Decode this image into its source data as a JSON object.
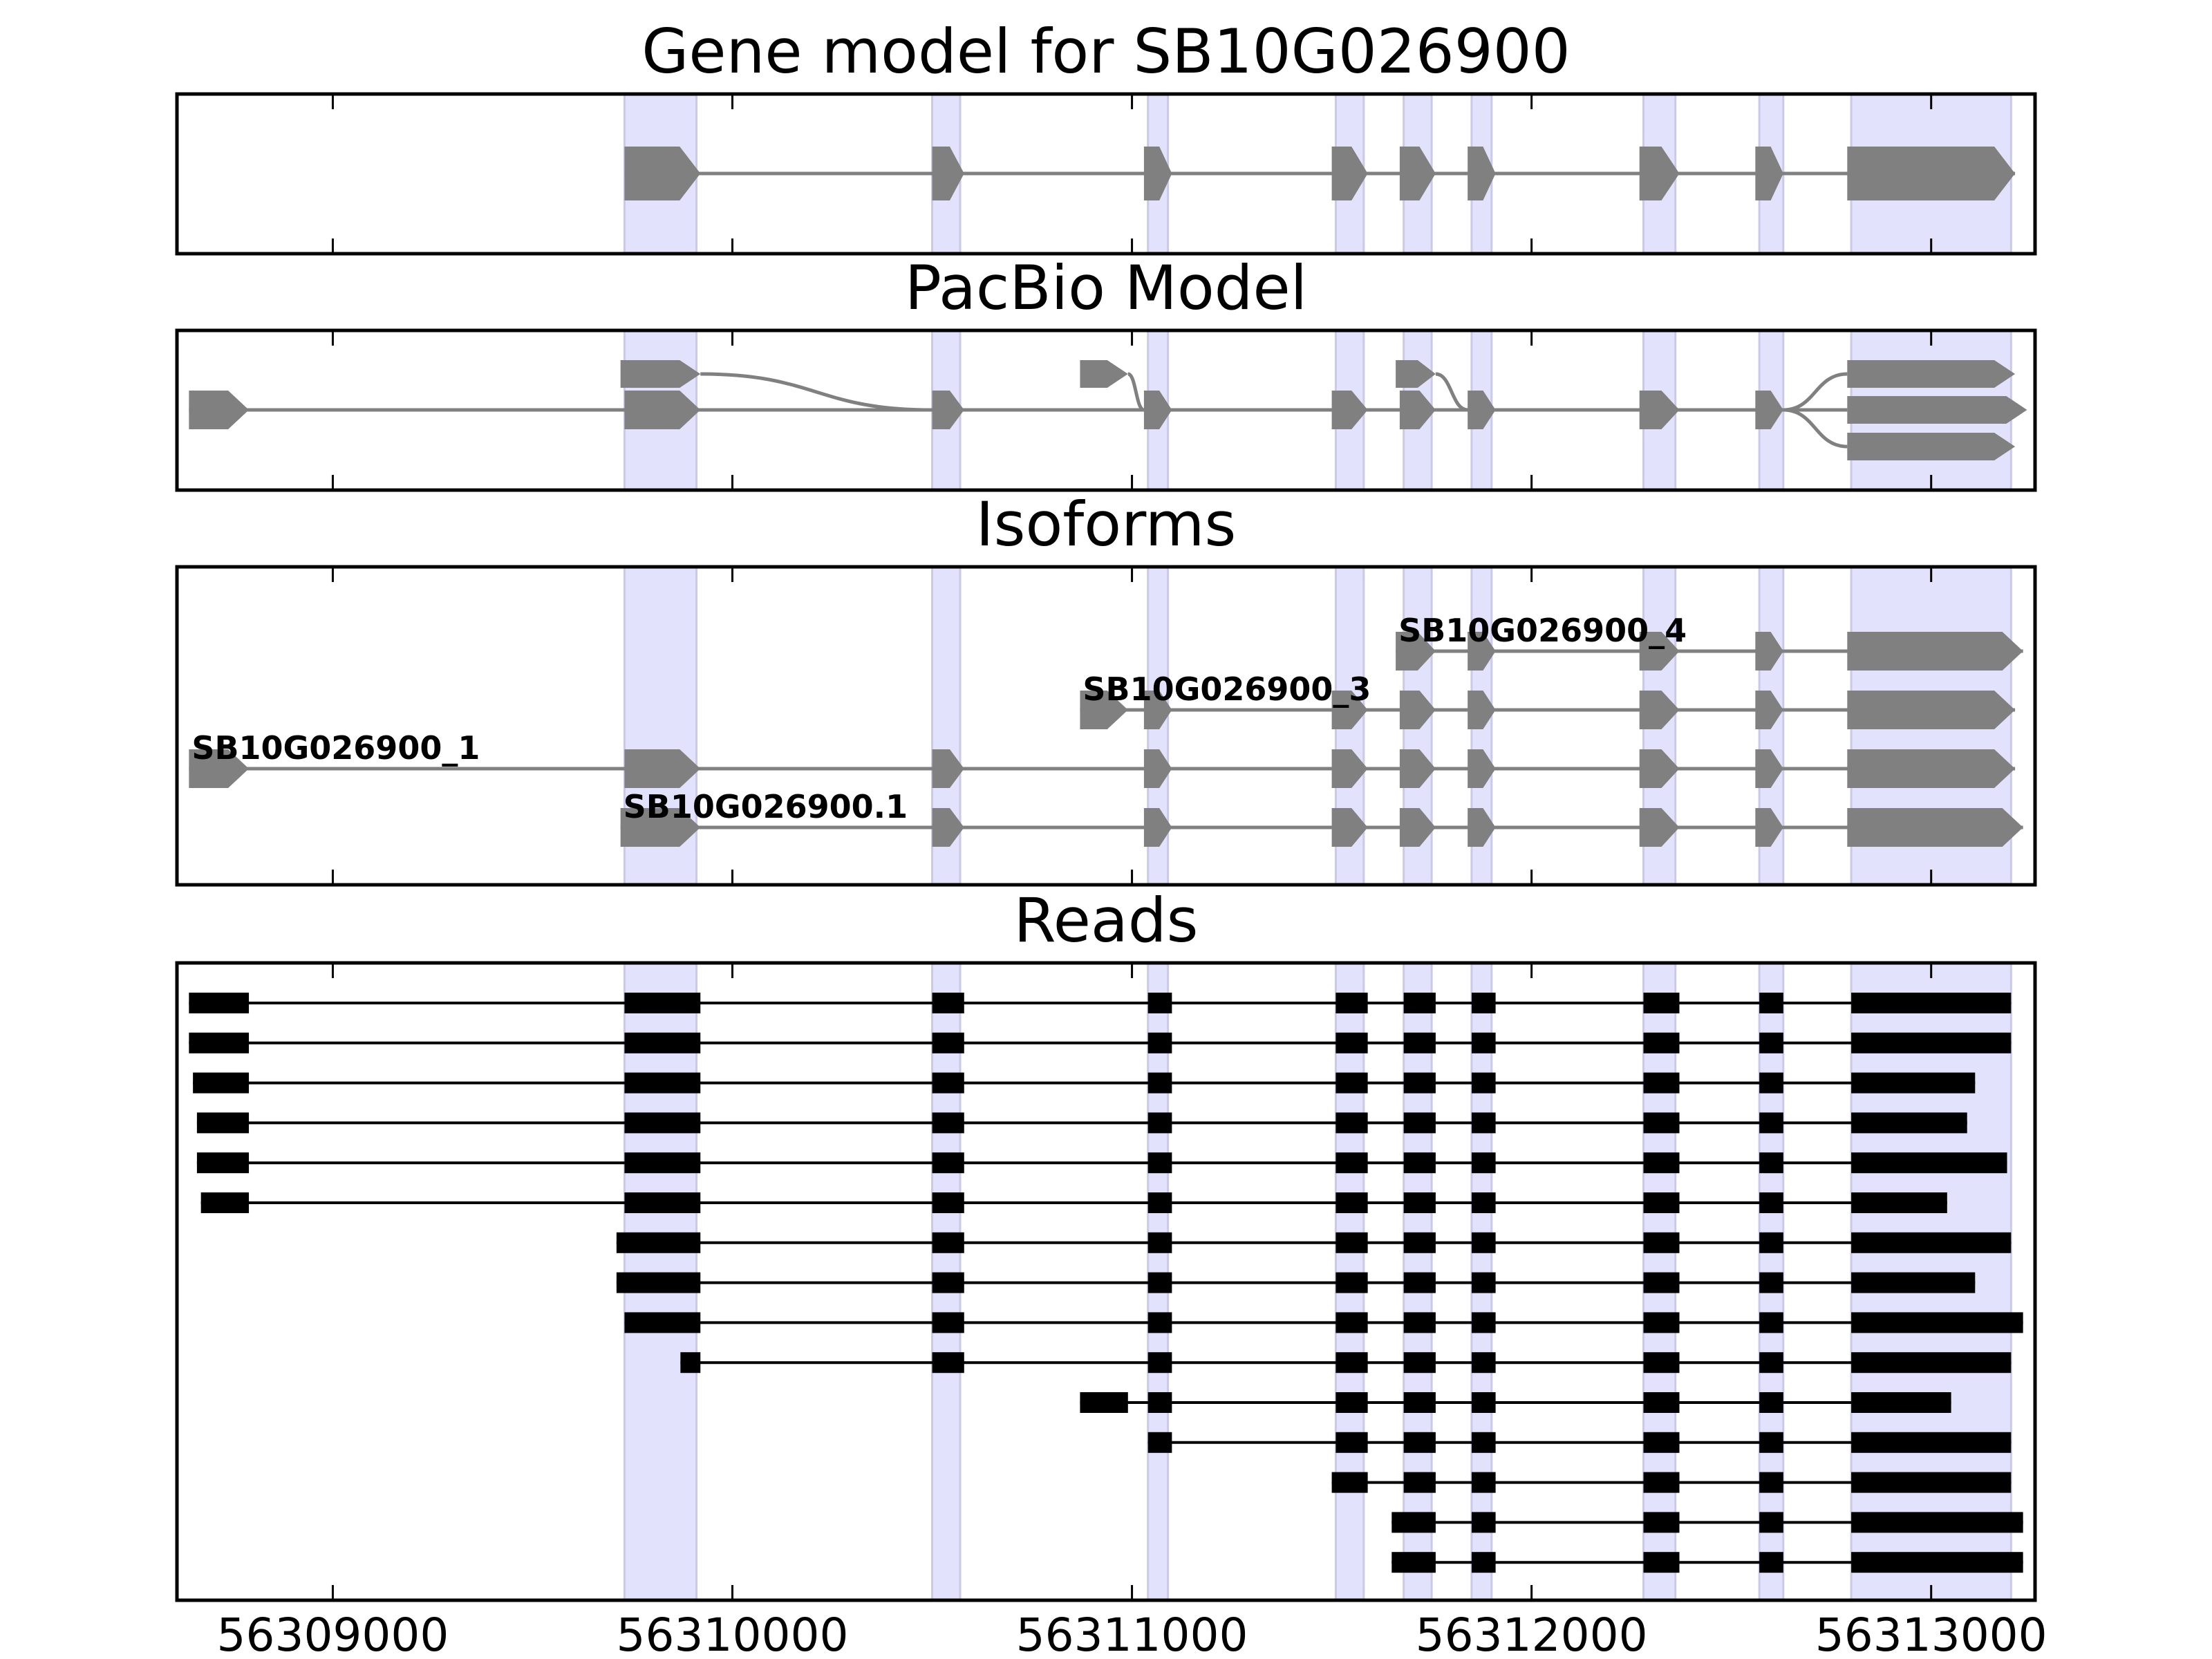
{
  "chart_data": {
    "type": "gene-structure",
    "x_axis": {
      "range": [
        56308610,
        56313260
      ],
      "ticks": [
        56309000,
        56310000,
        56311000,
        56312000,
        56313000
      ],
      "tick_labels": [
        "56309000",
        "56310000",
        "56311000",
        "56312000",
        "56313000"
      ]
    },
    "colors": {
      "exon_shade": "#e2e2fc",
      "exon_shade_edge": "#cacae8",
      "model": "#808080",
      "read": "#000000",
      "frame": "#000000"
    },
    "exon_regions": [
      [
        56309730,
        56309910
      ],
      [
        56310500,
        56310570
      ],
      [
        56311040,
        56311090
      ],
      [
        56311510,
        56311580
      ],
      [
        56311680,
        56311750
      ],
      [
        56311850,
        56311900
      ],
      [
        56312280,
        56312360
      ],
      [
        56312570,
        56312630
      ],
      [
        56312800,
        56313200
      ]
    ],
    "panels": [
      {
        "id": "gene",
        "title": "Gene model for SB10G026900",
        "lanes": 1,
        "tracks": [
          {
            "lane": 0,
            "exons": [
              [
                56309730,
                56309920
              ],
              [
                56310500,
                56310580
              ],
              [
                56311030,
                56311100
              ],
              [
                56311500,
                56311590
              ],
              [
                56311670,
                56311760
              ],
              [
                56311840,
                56311910
              ],
              [
                56312270,
                56312370
              ],
              [
                56312560,
                56312630
              ],
              [
                56312790,
                56313210
              ]
            ]
          }
        ]
      },
      {
        "id": "pacbio",
        "title": "PacBio Model",
        "lanes": 3,
        "tracks": [
          {
            "lane": 1,
            "exons": [
              [
                56308640,
                56308790
              ],
              [
                56309730,
                56309920
              ],
              [
                56310500,
                56310580
              ],
              [
                56311030,
                56311100
              ],
              [
                56311500,
                56311590
              ],
              [
                56311670,
                56311760
              ],
              [
                56311840,
                56311910
              ],
              [
                56312270,
                56312370
              ],
              [
                56312560,
                56312630
              ]
            ]
          }
        ],
        "nodes": [
          {
            "lane": 0,
            "start": 56309720,
            "end": 56309920
          },
          {
            "lane": 0,
            "start": 56310870,
            "end": 56310990
          },
          {
            "lane": 0,
            "start": 56311660,
            "end": 56311760
          },
          {
            "lane": 0,
            "start": 56312790,
            "end": 56313210
          },
          {
            "lane": 1,
            "start": 56312790,
            "end": 56313240
          },
          {
            "lane": 2,
            "start": 56312790,
            "end": 56313210
          }
        ],
        "connectors": [
          {
            "from": 56309920,
            "from_lane": 0,
            "to": 56310500,
            "to_lane": 1
          },
          {
            "from": 56310990,
            "from_lane": 0,
            "to": 56311030,
            "to_lane": 1
          },
          {
            "from": 56311760,
            "from_lane": 0,
            "to": 56311840,
            "to_lane": 1
          },
          {
            "from": 56312630,
            "from_lane": 1,
            "to": 56312790,
            "to_lane": 0
          },
          {
            "from": 56312630,
            "from_lane": 1,
            "to": 56312790,
            "to_lane": 1
          },
          {
            "from": 56312630,
            "from_lane": 1,
            "to": 56312790,
            "to_lane": 2
          }
        ]
      },
      {
        "id": "isoforms",
        "title": "Isoforms",
        "lanes": 4,
        "tracks": [
          {
            "lane": 0,
            "label": "SB10G026900_4",
            "exons": [
              [
                56311660,
                56311760
              ],
              [
                56311840,
                56311910
              ],
              [
                56312270,
                56312370
              ],
              [
                56312560,
                56312630
              ],
              [
                56312790,
                56313230
              ]
            ]
          },
          {
            "lane": 1,
            "label": "SB10G026900_3",
            "exons": [
              [
                56310870,
                56310990
              ],
              [
                56311030,
                56311100
              ],
              [
                56311500,
                56311590
              ],
              [
                56311670,
                56311760
              ],
              [
                56311840,
                56311910
              ],
              [
                56312270,
                56312370
              ],
              [
                56312560,
                56312630
              ],
              [
                56312790,
                56313210
              ]
            ]
          },
          {
            "lane": 2,
            "label": "SB10G026900_1",
            "exons": [
              [
                56308640,
                56308790
              ],
              [
                56309730,
                56309920
              ],
              [
                56310500,
                56310580
              ],
              [
                56311030,
                56311100
              ],
              [
                56311500,
                56311590
              ],
              [
                56311670,
                56311760
              ],
              [
                56311840,
                56311910
              ],
              [
                56312270,
                56312370
              ],
              [
                56312560,
                56312630
              ],
              [
                56312790,
                56313210
              ]
            ]
          },
          {
            "lane": 3,
            "label": "SB10G026900.1",
            "exons": [
              [
                56309720,
                56309920
              ],
              [
                56310500,
                56310580
              ],
              [
                56311030,
                56311100
              ],
              [
                56311500,
                56311590
              ],
              [
                56311670,
                56311760
              ],
              [
                56311840,
                56311910
              ],
              [
                56312270,
                56312370
              ],
              [
                56312560,
                56312630
              ],
              [
                56312790,
                56313230
              ]
            ]
          }
        ]
      },
      {
        "id": "reads",
        "title": "Reads",
        "lanes": 15,
        "tracks": [
          {
            "lane": 0,
            "exons": [
              [
                56308640,
                56308790
              ],
              [
                56309730,
                56309920
              ],
              [
                56310500,
                56310580
              ],
              [
                56311040,
                56311100
              ],
              [
                56311510,
                56311590
              ],
              [
                56311680,
                56311760
              ],
              [
                56311850,
                56311910
              ],
              [
                56312280,
                56312370
              ],
              [
                56312570,
                56312630
              ],
              [
                56312800,
                56313200
              ]
            ]
          },
          {
            "lane": 1,
            "exons": [
              [
                56308640,
                56308790
              ],
              [
                56309730,
                56309920
              ],
              [
                56310500,
                56310580
              ],
              [
                56311040,
                56311100
              ],
              [
                56311510,
                56311590
              ],
              [
                56311680,
                56311760
              ],
              [
                56311850,
                56311910
              ],
              [
                56312280,
                56312370
              ],
              [
                56312570,
                56312630
              ],
              [
                56312800,
                56313200
              ]
            ]
          },
          {
            "lane": 2,
            "exons": [
              [
                56308650,
                56308790
              ],
              [
                56309730,
                56309920
              ],
              [
                56310500,
                56310580
              ],
              [
                56311040,
                56311100
              ],
              [
                56311510,
                56311590
              ],
              [
                56311680,
                56311760
              ],
              [
                56311850,
                56311910
              ],
              [
                56312280,
                56312370
              ],
              [
                56312570,
                56312630
              ],
              [
                56312800,
                56313110
              ]
            ]
          },
          {
            "lane": 3,
            "exons": [
              [
                56308660,
                56308790
              ],
              [
                56309730,
                56309920
              ],
              [
                56310500,
                56310580
              ],
              [
                56311040,
                56311100
              ],
              [
                56311510,
                56311590
              ],
              [
                56311680,
                56311760
              ],
              [
                56311850,
                56311910
              ],
              [
                56312280,
                56312370
              ],
              [
                56312570,
                56312630
              ],
              [
                56312800,
                56313090
              ]
            ]
          },
          {
            "lane": 4,
            "exons": [
              [
                56308660,
                56308790
              ],
              [
                56309730,
                56309920
              ],
              [
                56310500,
                56310580
              ],
              [
                56311040,
                56311100
              ],
              [
                56311510,
                56311590
              ],
              [
                56311680,
                56311760
              ],
              [
                56311850,
                56311910
              ],
              [
                56312280,
                56312370
              ],
              [
                56312570,
                56312630
              ],
              [
                56312800,
                56313190
              ]
            ]
          },
          {
            "lane": 5,
            "exons": [
              [
                56308670,
                56308790
              ],
              [
                56309730,
                56309920
              ],
              [
                56310500,
                56310580
              ],
              [
                56311040,
                56311100
              ],
              [
                56311510,
                56311590
              ],
              [
                56311680,
                56311760
              ],
              [
                56311850,
                56311910
              ],
              [
                56312280,
                56312370
              ],
              [
                56312570,
                56312630
              ],
              [
                56312800,
                56313040
              ]
            ]
          },
          {
            "lane": 6,
            "exons": [
              [
                56309710,
                56309920
              ],
              [
                56310500,
                56310580
              ],
              [
                56311040,
                56311100
              ],
              [
                56311510,
                56311590
              ],
              [
                56311680,
                56311760
              ],
              [
                56311850,
                56311910
              ],
              [
                56312280,
                56312370
              ],
              [
                56312570,
                56312630
              ],
              [
                56312800,
                56313200
              ]
            ]
          },
          {
            "lane": 7,
            "exons": [
              [
                56309710,
                56309920
              ],
              [
                56310500,
                56310580
              ],
              [
                56311040,
                56311100
              ],
              [
                56311510,
                56311590
              ],
              [
                56311680,
                56311760
              ],
              [
                56311850,
                56311910
              ],
              [
                56312280,
                56312370
              ],
              [
                56312570,
                56312630
              ],
              [
                56312800,
                56313110
              ]
            ]
          },
          {
            "lane": 8,
            "exons": [
              [
                56309730,
                56309920
              ],
              [
                56310500,
                56310580
              ],
              [
                56311040,
                56311100
              ],
              [
                56311510,
                56311590
              ],
              [
                56311680,
                56311760
              ],
              [
                56311850,
                56311910
              ],
              [
                56312280,
                56312370
              ],
              [
                56312570,
                56312630
              ],
              [
                56312800,
                56313230
              ]
            ]
          },
          {
            "lane": 9,
            "exons": [
              [
                56309870,
                56309920
              ],
              [
                56310500,
                56310580
              ],
              [
                56311040,
                56311100
              ],
              [
                56311510,
                56311590
              ],
              [
                56311680,
                56311760
              ],
              [
                56311850,
                56311910
              ],
              [
                56312280,
                56312370
              ],
              [
                56312570,
                56312630
              ],
              [
                56312800,
                56313200
              ]
            ]
          },
          {
            "lane": 10,
            "exons": [
              [
                56310870,
                56310990
              ],
              [
                56311040,
                56311100
              ],
              [
                56311510,
                56311590
              ],
              [
                56311680,
                56311760
              ],
              [
                56311850,
                56311910
              ],
              [
                56312280,
                56312370
              ],
              [
                56312570,
                56312630
              ],
              [
                56312800,
                56313050
              ]
            ]
          },
          {
            "lane": 11,
            "exons": [
              [
                56311040,
                56311100
              ],
              [
                56311510,
                56311590
              ],
              [
                56311680,
                56311760
              ],
              [
                56311850,
                56311910
              ],
              [
                56312280,
                56312370
              ],
              [
                56312570,
                56312630
              ],
              [
                56312800,
                56313200
              ]
            ]
          },
          {
            "lane": 12,
            "exons": [
              [
                56311500,
                56311590
              ],
              [
                56311680,
                56311760
              ],
              [
                56311850,
                56311910
              ],
              [
                56312280,
                56312370
              ],
              [
                56312570,
                56312630
              ],
              [
                56312800,
                56313200
              ]
            ]
          },
          {
            "lane": 13,
            "exons": [
              [
                56311650,
                56311760
              ],
              [
                56311850,
                56311910
              ],
              [
                56312280,
                56312370
              ],
              [
                56312570,
                56312630
              ],
              [
                56312800,
                56313230
              ]
            ]
          },
          {
            "lane": 14,
            "exons": [
              [
                56311650,
                56311760
              ],
              [
                56311850,
                56311910
              ],
              [
                56312280,
                56312370
              ],
              [
                56312570,
                56312630
              ],
              [
                56312800,
                56313230
              ]
            ]
          }
        ]
      }
    ]
  }
}
